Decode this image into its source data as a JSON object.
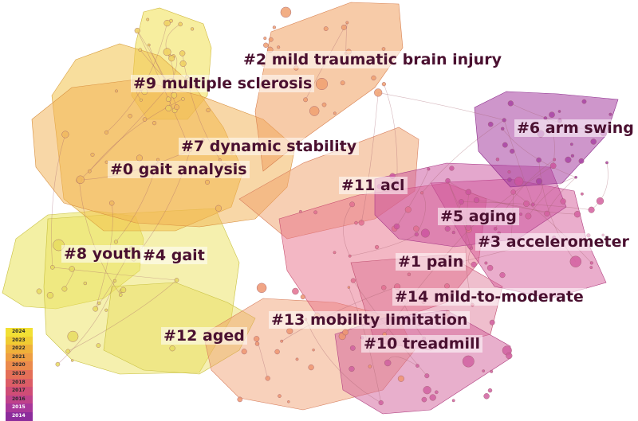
{
  "clusters": [
    {
      "id": "c0",
      "label": "#0 gait analysis"
    },
    {
      "id": "c1",
      "label": "#1 pain"
    },
    {
      "id": "c2",
      "label": "#2 mild traumatic brain injury"
    },
    {
      "id": "c3",
      "label": "#3 accelerometer"
    },
    {
      "id": "c4",
      "label": "#4 gait"
    },
    {
      "id": "c5",
      "label": "#5 aging"
    },
    {
      "id": "c6",
      "label": "#6 arm swing"
    },
    {
      "id": "c7",
      "label": "#7 dynamic stability"
    },
    {
      "id": "c8",
      "label": "#8 youth"
    },
    {
      "id": "c9",
      "label": "#9 multiple sclerosis"
    },
    {
      "id": "c10",
      "label": "#10 treadmill"
    },
    {
      "id": "c11",
      "label": "#11 acl"
    },
    {
      "id": "c12",
      "label": "#12 aged"
    },
    {
      "id": "c13",
      "label": "#13 mobility limitation"
    },
    {
      "id": "c14",
      "label": "#14 mild-to-moderate"
    }
  ],
  "legend": {
    "years": [
      "2024",
      "2023",
      "2022",
      "2021",
      "2020",
      "2019",
      "2018",
      "2017",
      "2016",
      "2015",
      "2014"
    ],
    "colors": [
      "#f2e034",
      "#f0cc32",
      "#efb13a",
      "#ee9e42",
      "#eb8a4c",
      "#e46f58",
      "#dc5d66",
      "#cf4d76",
      "#bf428a",
      "#a8379a",
      "#8c2c9c"
    ]
  },
  "colors": {
    "label_text": "#4a1030",
    "node_stroke": "#9a5a6a",
    "link": "#a5606c"
  }
}
